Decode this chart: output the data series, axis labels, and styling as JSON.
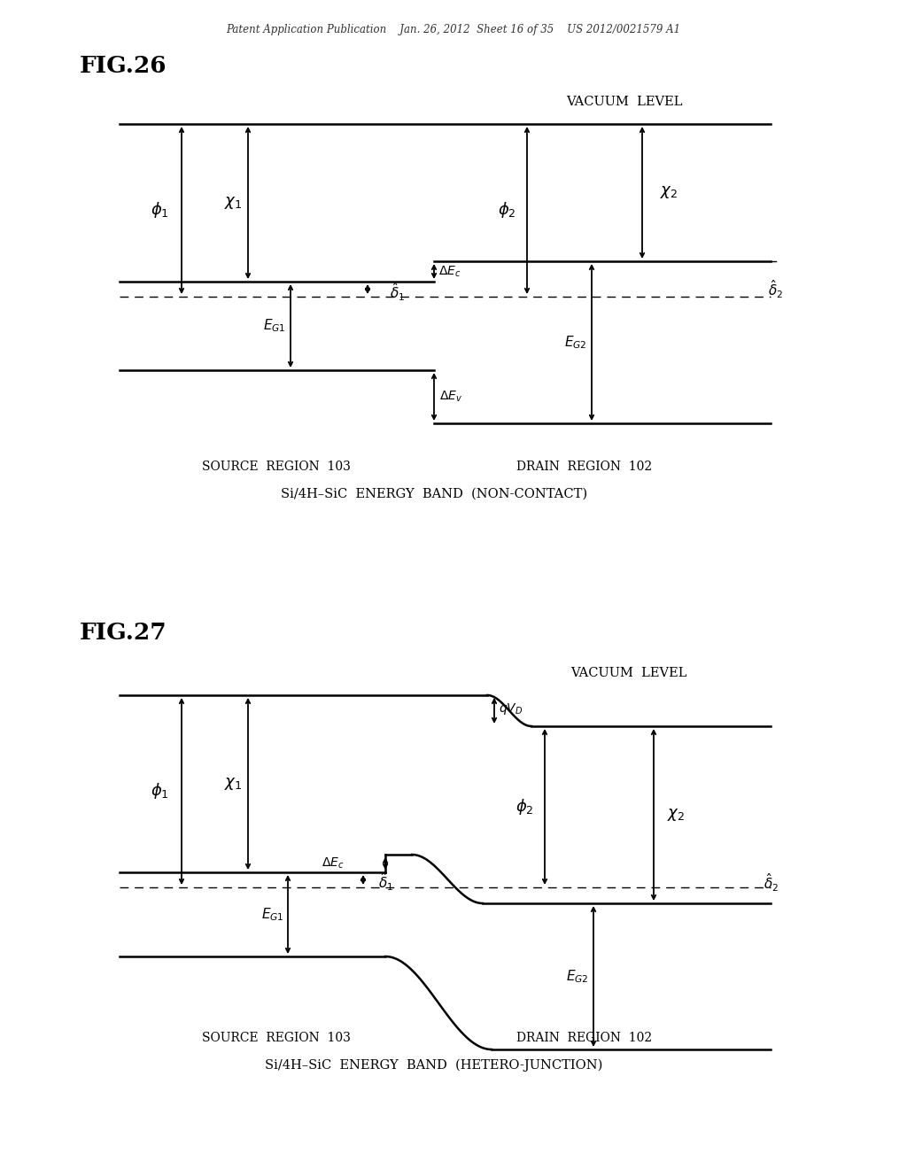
{
  "bg_color": "#ffffff",
  "header_text": "Patent Application Publication    Jan. 26, 2012  Sheet 16 of 35    US 2012/0021579 A1",
  "fig26_label": "FIG.26",
  "fig27_label": "FIG.27",
  "subtitle1": "Si/4H–SiC  ENERGY  BAND  (NON-CONTACT)",
  "subtitle2": "Si/4H–SiC  ENERGY  BAND  (HETERO-JUNCTION)",
  "source_label": "SOURCE  REGION  103",
  "drain_label": "DRAIN  REGION  102",
  "vac_level_text": "VACUUM  LEVEL"
}
